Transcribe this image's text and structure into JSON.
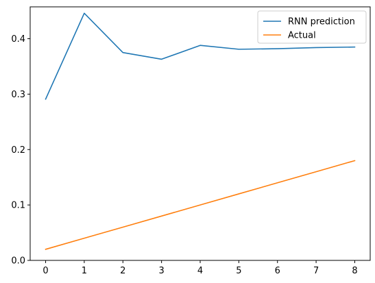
{
  "chart_data": {
    "type": "line",
    "title": "",
    "xlabel": "",
    "ylabel": "",
    "xlim": [
      -0.4,
      8.4
    ],
    "ylim": [
      0.0,
      0.4575
    ],
    "x_ticks": [
      0,
      1,
      2,
      3,
      4,
      5,
      6,
      7,
      8
    ],
    "y_ticks": [
      0.0,
      0.1,
      0.2,
      0.3,
      0.4
    ],
    "x_tick_labels": [
      "0",
      "1",
      "2",
      "3",
      "4",
      "5",
      "6",
      "7",
      "8"
    ],
    "y_tick_labels": [
      "0.0",
      "0.1",
      "0.2",
      "0.3",
      "0.4"
    ],
    "grid": false,
    "legend_position": "top-right",
    "series": [
      {
        "name": "RNN prediction",
        "color": "#1f77b4",
        "x": [
          0,
          1,
          2,
          3,
          4,
          5,
          6,
          7,
          8
        ],
        "values": [
          0.291,
          0.446,
          0.375,
          0.363,
          0.388,
          0.381,
          0.382,
          0.384,
          0.385
        ]
      },
      {
        "name": "Actual",
        "color": "#ff7f0e",
        "x": [
          0,
          1,
          2,
          3,
          4,
          5,
          6,
          7,
          8
        ],
        "values": [
          0.02,
          0.04,
          0.06,
          0.08,
          0.1,
          0.12,
          0.14,
          0.16,
          0.18
        ]
      }
    ]
  }
}
